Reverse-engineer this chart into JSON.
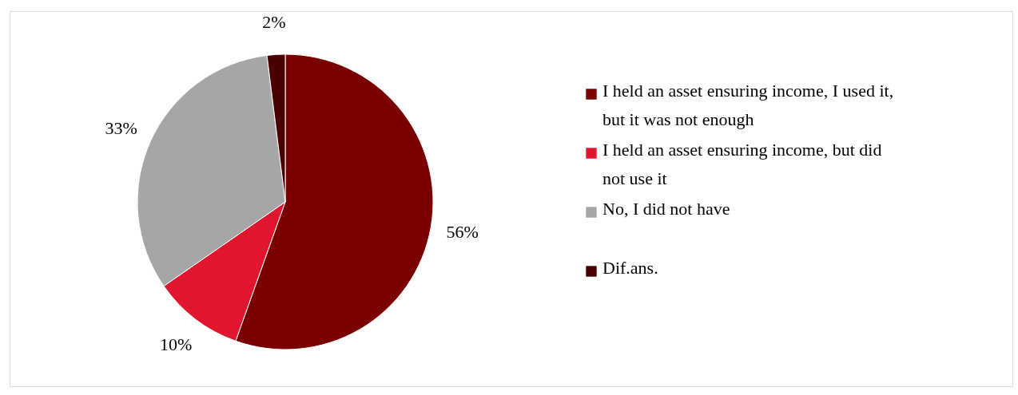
{
  "chart_data": {
    "type": "pie",
    "categories": [
      "I held an asset ensuring income, I used it, but it was not enough",
      "I held an asset ensuring income, but did not use it",
      "No, I did not have",
      "Dif.ans."
    ],
    "values": [
      56,
      10,
      33,
      2
    ],
    "value_labels": [
      "56%",
      "10%",
      "33%",
      "2%"
    ],
    "colors": [
      "#7a0000",
      "#e0162f",
      "#a6a6a6",
      "#4a0000"
    ],
    "legend": "right"
  }
}
